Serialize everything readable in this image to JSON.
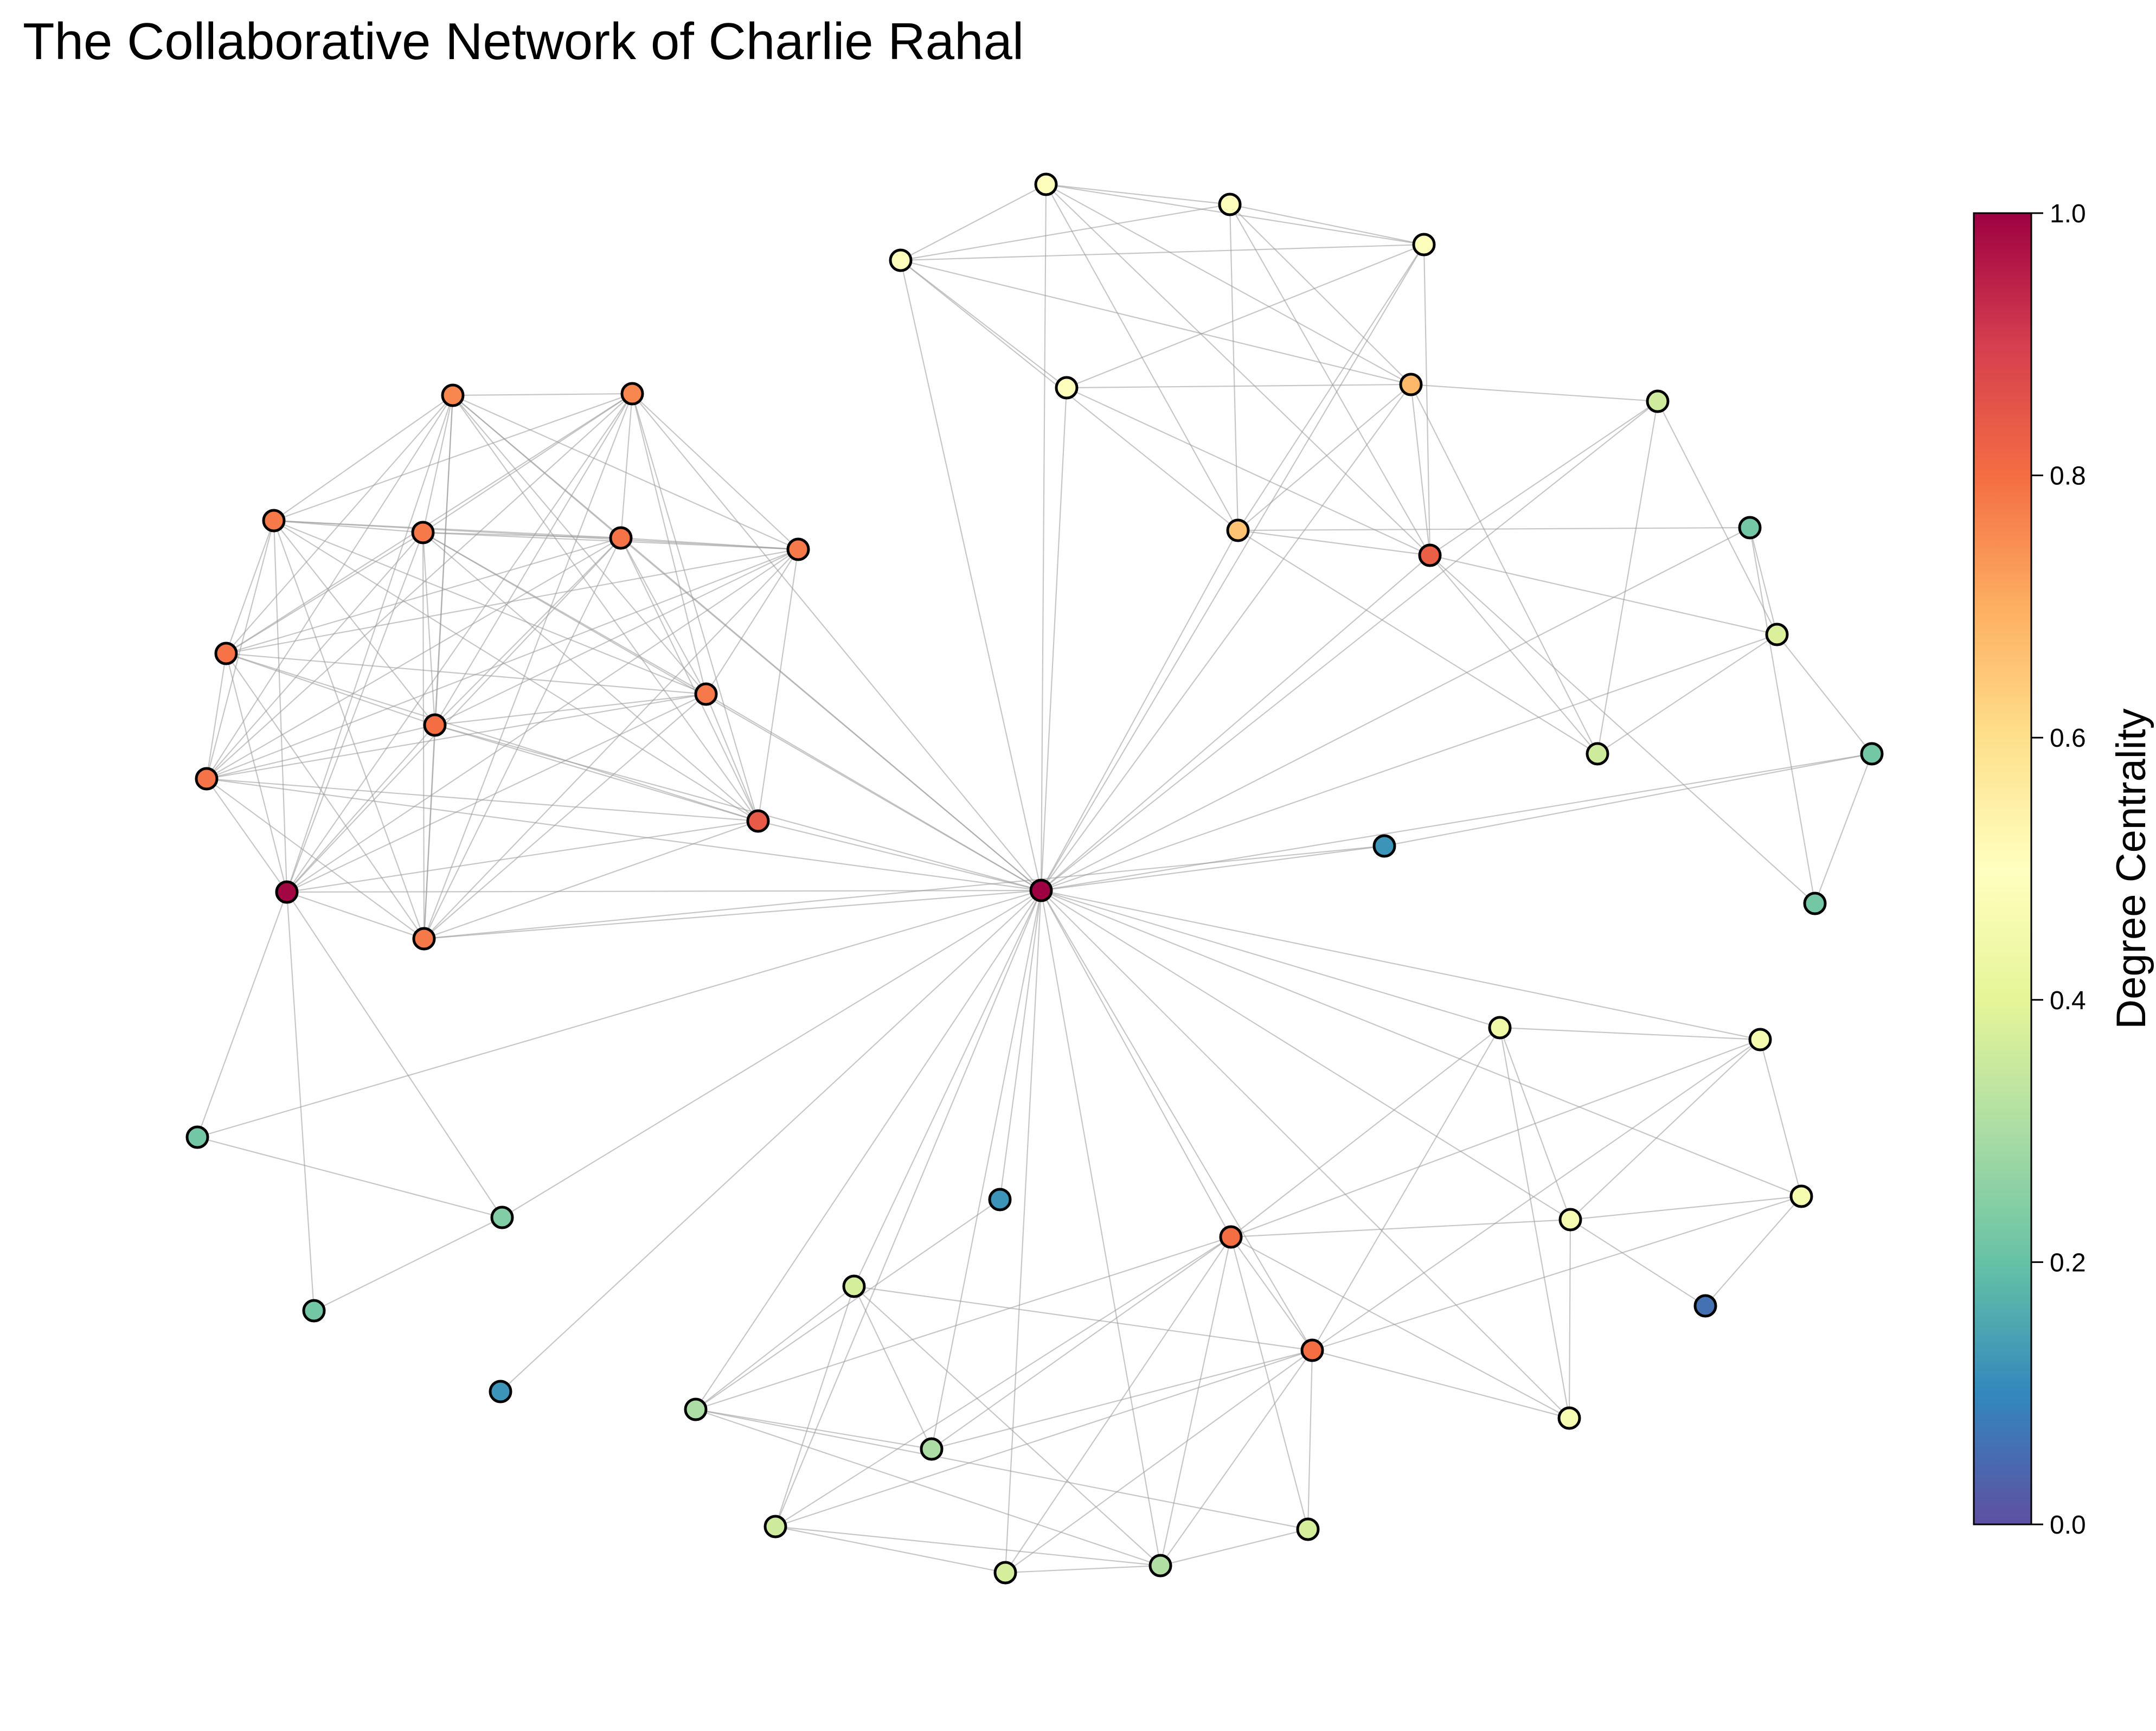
{
  "title": "The Collaborative Network of Charlie Rahal",
  "colorbar": {
    "label": "Degree Centrality",
    "min": 0.0,
    "max": 1.0,
    "ticks": [
      "0.0",
      "0.2",
      "0.4",
      "0.6",
      "0.8",
      "1.0"
    ],
    "colormap": "Spectral_r",
    "stops": [
      "#5e4fa2",
      "#3288bd",
      "#66c2a5",
      "#abdda4",
      "#e6f598",
      "#ffffbf",
      "#fee08b",
      "#fdae61",
      "#f46d43",
      "#d53e4f",
      "#9e0142"
    ]
  },
  "style": {
    "node_outline": "#000000",
    "edge_color": "#999999"
  },
  "nodes": [
    {
      "id": "hub",
      "centrality": 1.0
    },
    {
      "id": "a1",
      "centrality": 0.76
    },
    {
      "id": "a2",
      "centrality": 0.76
    },
    {
      "id": "a3",
      "centrality": 0.78
    },
    {
      "id": "a4",
      "centrality": 0.78
    },
    {
      "id": "a5",
      "centrality": 0.79
    },
    {
      "id": "a6",
      "centrality": 0.78
    },
    {
      "id": "a7",
      "centrality": 0.79
    },
    {
      "id": "a8",
      "centrality": 0.8
    },
    {
      "id": "a9",
      "centrality": 0.78
    },
    {
      "id": "a10",
      "centrality": 0.84
    },
    {
      "id": "a11",
      "centrality": 0.99
    },
    {
      "id": "a12",
      "centrality": 0.79
    },
    {
      "id": "a13",
      "centrality": 0.78
    },
    {
      "id": "t1",
      "centrality": 0.49
    },
    {
      "id": "t2",
      "centrality": 0.49
    },
    {
      "id": "t3",
      "centrality": 0.49
    },
    {
      "id": "t4",
      "centrality": 0.49
    },
    {
      "id": "t5",
      "centrality": 0.49
    },
    {
      "id": "t6",
      "centrality": 0.68
    },
    {
      "id": "t7",
      "centrality": 0.66
    },
    {
      "id": "t8",
      "centrality": 0.83
    },
    {
      "id": "r1",
      "centrality": 0.36
    },
    {
      "id": "r2",
      "centrality": 0.22
    },
    {
      "id": "r3",
      "centrality": 0.38
    },
    {
      "id": "r4",
      "centrality": 0.36
    },
    {
      "id": "r5",
      "centrality": 0.22
    },
    {
      "id": "r6",
      "centrality": 0.22
    },
    {
      "id": "lone1",
      "centrality": 0.12
    },
    {
      "id": "l1",
      "centrality": 0.22
    },
    {
      "id": "l2",
      "centrality": 0.24
    },
    {
      "id": "l3",
      "centrality": 0.22
    },
    {
      "id": "lone2",
      "centrality": 0.12
    },
    {
      "id": "lone3",
      "centrality": 0.12
    },
    {
      "id": "s1",
      "centrality": 0.37
    },
    {
      "id": "s2",
      "centrality": 0.3
    },
    {
      "id": "s3",
      "centrality": 0.3
    },
    {
      "id": "s4",
      "centrality": 0.36
    },
    {
      "id": "s5",
      "centrality": 0.37
    },
    {
      "id": "s6",
      "centrality": 0.31
    },
    {
      "id": "s7",
      "centrality": 0.37
    },
    {
      "id": "s8",
      "centrality": 0.8
    },
    {
      "id": "s9",
      "centrality": 0.8
    },
    {
      "id": "e1",
      "centrality": 0.44
    },
    {
      "id": "e2",
      "centrality": 0.46
    },
    {
      "id": "e3",
      "centrality": 0.47
    },
    {
      "id": "e4",
      "centrality": 0.46
    },
    {
      "id": "e5",
      "centrality": 0.47
    },
    {
      "id": "e6",
      "centrality": 0.06
    }
  ],
  "edges": [
    [
      "hub",
      "a1"
    ],
    [
      "hub",
      "a2"
    ],
    [
      "hub",
      "a4"
    ],
    [
      "hub",
      "a5"
    ],
    [
      "hub",
      "a8"
    ],
    [
      "hub",
      "a10"
    ],
    [
      "hub",
      "a11"
    ],
    [
      "hub",
      "a12"
    ],
    [
      "hub",
      "a13"
    ],
    [
      "hub",
      "a9"
    ],
    [
      "hub",
      "t1"
    ],
    [
      "hub",
      "t2"
    ],
    [
      "hub",
      "t5"
    ],
    [
      "hub",
      "t4"
    ],
    [
      "hub",
      "t6"
    ],
    [
      "hub",
      "t7"
    ],
    [
      "hub",
      "t8"
    ],
    [
      "hub",
      "r1"
    ],
    [
      "hub",
      "r2"
    ],
    [
      "hub",
      "r3"
    ],
    [
      "hub",
      "r5"
    ],
    [
      "hub",
      "lone1"
    ],
    [
      "hub",
      "l1"
    ],
    [
      "hub",
      "l2"
    ],
    [
      "hub",
      "lone2"
    ],
    [
      "hub",
      "s1"
    ],
    [
      "hub",
      "s2"
    ],
    [
      "hub",
      "s3"
    ],
    [
      "hub",
      "s4"
    ],
    [
      "hub",
      "s5"
    ],
    [
      "hub",
      "s6"
    ],
    [
      "hub",
      "s8"
    ],
    [
      "hub",
      "s9"
    ],
    [
      "hub",
      "e1"
    ],
    [
      "hub",
      "e3"
    ],
    [
      "hub",
      "e4"
    ],
    [
      "hub",
      "e5"
    ],
    [
      "hub",
      "e2"
    ],
    [
      "a1",
      "a2"
    ],
    [
      "a1",
      "a3"
    ],
    [
      "a1",
      "a4"
    ],
    [
      "a1",
      "a5"
    ],
    [
      "a1",
      "a6"
    ],
    [
      "a1",
      "a7"
    ],
    [
      "a1",
      "a8"
    ],
    [
      "a1",
      "a9"
    ],
    [
      "a1",
      "a10"
    ],
    [
      "a1",
      "a11"
    ],
    [
      "a1",
      "a12"
    ],
    [
      "a1",
      "a13"
    ],
    [
      "a2",
      "a3"
    ],
    [
      "a2",
      "a4"
    ],
    [
      "a2",
      "a5"
    ],
    [
      "a2",
      "a6"
    ],
    [
      "a2",
      "a7"
    ],
    [
      "a2",
      "a8"
    ],
    [
      "a2",
      "a9"
    ],
    [
      "a2",
      "a10"
    ],
    [
      "a2",
      "a11"
    ],
    [
      "a2",
      "a12"
    ],
    [
      "a2",
      "a13"
    ],
    [
      "a3",
      "a4"
    ],
    [
      "a3",
      "a5"
    ],
    [
      "a3",
      "a6"
    ],
    [
      "a3",
      "a7"
    ],
    [
      "a3",
      "a8"
    ],
    [
      "a3",
      "a9"
    ],
    [
      "a3",
      "a10"
    ],
    [
      "a3",
      "a11"
    ],
    [
      "a3",
      "a12"
    ],
    [
      "a3",
      "a13"
    ],
    [
      "a4",
      "a5"
    ],
    [
      "a4",
      "a6"
    ],
    [
      "a4",
      "a7"
    ],
    [
      "a4",
      "a8"
    ],
    [
      "a4",
      "a9"
    ],
    [
      "a4",
      "a10"
    ],
    [
      "a4",
      "a11"
    ],
    [
      "a4",
      "a12"
    ],
    [
      "a4",
      "a13"
    ],
    [
      "a5",
      "a6"
    ],
    [
      "a5",
      "a7"
    ],
    [
      "a5",
      "a8"
    ],
    [
      "a5",
      "a9"
    ],
    [
      "a5",
      "a10"
    ],
    [
      "a5",
      "a11"
    ],
    [
      "a5",
      "a12"
    ],
    [
      "a5",
      "a13"
    ],
    [
      "a6",
      "a7"
    ],
    [
      "a6",
      "a8"
    ],
    [
      "a6",
      "a9"
    ],
    [
      "a6",
      "a10"
    ],
    [
      "a6",
      "a11"
    ],
    [
      "a6",
      "a12"
    ],
    [
      "a6",
      "a13"
    ],
    [
      "a7",
      "a8"
    ],
    [
      "a7",
      "a9"
    ],
    [
      "a7",
      "a10"
    ],
    [
      "a7",
      "a11"
    ],
    [
      "a7",
      "a12"
    ],
    [
      "a7",
      "a13"
    ],
    [
      "a8",
      "a9"
    ],
    [
      "a8",
      "a10"
    ],
    [
      "a8",
      "a11"
    ],
    [
      "a8",
      "a12"
    ],
    [
      "a8",
      "a13"
    ],
    [
      "a9",
      "a10"
    ],
    [
      "a9",
      "a11"
    ],
    [
      "a9",
      "a12"
    ],
    [
      "a9",
      "a13"
    ],
    [
      "a10",
      "a11"
    ],
    [
      "a10",
      "a12"
    ],
    [
      "a10",
      "a13"
    ],
    [
      "a11",
      "a12"
    ],
    [
      "a11",
      "a13"
    ],
    [
      "a12",
      "a13"
    ],
    [
      "a11",
      "l1"
    ],
    [
      "a11",
      "l2"
    ],
    [
      "a11",
      "l3"
    ],
    [
      "l1",
      "l2"
    ],
    [
      "l2",
      "l3"
    ],
    [
      "t1",
      "t2"
    ],
    [
      "t1",
      "t3"
    ],
    [
      "t1",
      "t4"
    ],
    [
      "t1",
      "t5"
    ],
    [
      "t1",
      "t6"
    ],
    [
      "t1",
      "t7"
    ],
    [
      "t2",
      "t3"
    ],
    [
      "t2",
      "t4"
    ],
    [
      "t2",
      "t6"
    ],
    [
      "t2",
      "t7"
    ],
    [
      "t2",
      "t8"
    ],
    [
      "t3",
      "t4"
    ],
    [
      "t3",
      "t6"
    ],
    [
      "t3",
      "t7"
    ],
    [
      "t3",
      "t8"
    ],
    [
      "t4",
      "t5"
    ],
    [
      "t4",
      "t7"
    ],
    [
      "t4",
      "t8"
    ],
    [
      "t5",
      "t6"
    ],
    [
      "t5",
      "t8"
    ],
    [
      "t6",
      "t7"
    ],
    [
      "t6",
      "t8"
    ],
    [
      "t7",
      "t8"
    ],
    [
      "t6",
      "r1"
    ],
    [
      "t8",
      "r1"
    ],
    [
      "t8",
      "r3"
    ],
    [
      "t8",
      "r4"
    ],
    [
      "t8",
      "r6"
    ],
    [
      "t6",
      "r4"
    ],
    [
      "t7",
      "r4"
    ],
    [
      "t7",
      "r2"
    ],
    [
      "r1",
      "r3"
    ],
    [
      "r1",
      "r4"
    ],
    [
      "r2",
      "r3"
    ],
    [
      "r3",
      "r4"
    ],
    [
      "r3",
      "r5"
    ],
    [
      "r5",
      "r6"
    ],
    [
      "r2",
      "r6"
    ],
    [
      "lone1",
      "a13"
    ],
    [
      "lone1",
      "r5"
    ],
    [
      "e1",
      "e2"
    ],
    [
      "e1",
      "e3"
    ],
    [
      "e1",
      "e5"
    ],
    [
      "e1",
      "s8"
    ],
    [
      "e1",
      "s9"
    ],
    [
      "e2",
      "e3"
    ],
    [
      "e2",
      "e4"
    ],
    [
      "e2",
      "s8"
    ],
    [
      "e2",
      "s9"
    ],
    [
      "e3",
      "e4"
    ],
    [
      "e3",
      "e5"
    ],
    [
      "e3",
      "s8"
    ],
    [
      "e3",
      "e6"
    ],
    [
      "e4",
      "e6"
    ],
    [
      "e4",
      "s9"
    ],
    [
      "e5",
      "s9"
    ],
    [
      "e5",
      "s8"
    ],
    [
      "s8",
      "s9"
    ],
    [
      "s8",
      "s2"
    ],
    [
      "s8",
      "s3"
    ],
    [
      "s8",
      "s4"
    ],
    [
      "s8",
      "s5"
    ],
    [
      "s8",
      "s7"
    ],
    [
      "s8",
      "s6"
    ],
    [
      "s9",
      "s1"
    ],
    [
      "s9",
      "s3"
    ],
    [
      "s9",
      "s4"
    ],
    [
      "s9",
      "s5"
    ],
    [
      "s9",
      "s7"
    ],
    [
      "s9",
      "s6"
    ],
    [
      "s1",
      "s2"
    ],
    [
      "s1",
      "s3"
    ],
    [
      "s1",
      "s4"
    ],
    [
      "s1",
      "s6"
    ],
    [
      "s2",
      "s3"
    ],
    [
      "s2",
      "s6"
    ],
    [
      "s2",
      "s7"
    ],
    [
      "s4",
      "s5"
    ],
    [
      "s4",
      "s6"
    ],
    [
      "s5",
      "s6"
    ],
    [
      "s6",
      "s7"
    ],
    [
      "lone3",
      "s2"
    ],
    [
      "lone3",
      "hub"
    ]
  ]
}
